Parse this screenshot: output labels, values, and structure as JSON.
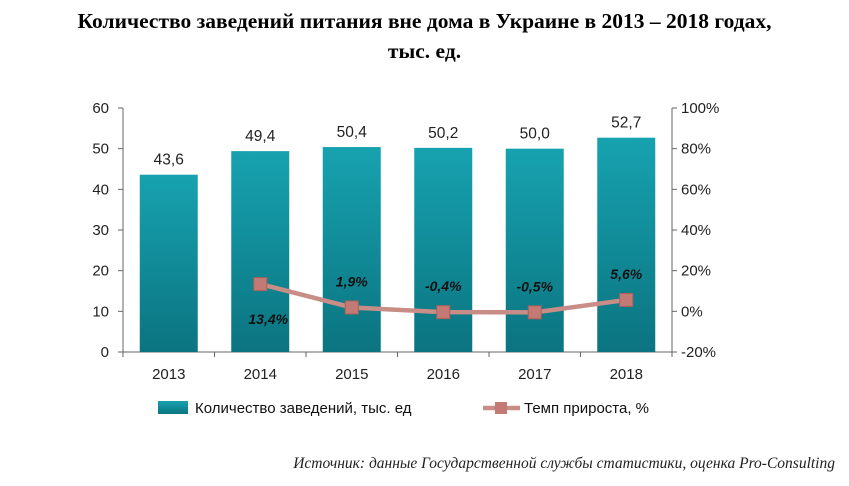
{
  "title": {
    "line1": "Количество заведений питания вне дома в Украине в 2013 – 2018 годах,",
    "line2": "тыс. ед."
  },
  "source": "Источник: данные Государственной службы статистики, оценка Pro-Consulting",
  "colors": {
    "bar": "#17a2b0",
    "bar_dark": "#0b7480",
    "line": "#c98d88",
    "marker": "#c47a74",
    "axis": "#666666"
  },
  "chart_data": {
    "type": "bar",
    "categories": [
      "2013",
      "2014",
      "2015",
      "2016",
      "2017",
      "2018"
    ],
    "series": [
      {
        "name": "Количество заведений, тыс. ед",
        "type": "bar",
        "axis": "left",
        "values": [
          43.6,
          49.4,
          50.4,
          50.2,
          50.0,
          52.7
        ],
        "labels": [
          "43,6",
          "49,4",
          "50,4",
          "50,2",
          "50,0",
          "52,7"
        ]
      },
      {
        "name": "Темп прироста, %",
        "type": "line",
        "axis": "right",
        "values": [
          null,
          13.4,
          1.9,
          -0.4,
          -0.5,
          5.6
        ],
        "labels": [
          "",
          "13,4%",
          "1,9%",
          "-0,4%",
          "-0,5%",
          "5,6%"
        ]
      }
    ],
    "y_left": {
      "ylim": [
        0,
        60
      ],
      "ticks": [
        "0",
        "10",
        "20",
        "30",
        "40",
        "50",
        "60"
      ]
    },
    "y_right": {
      "ylim": [
        -20,
        100
      ],
      "ticks": [
        "-20%",
        "0%",
        "20%",
        "40%",
        "60%",
        "80%",
        "100%"
      ]
    },
    "grid": false,
    "legend": "bottom"
  }
}
